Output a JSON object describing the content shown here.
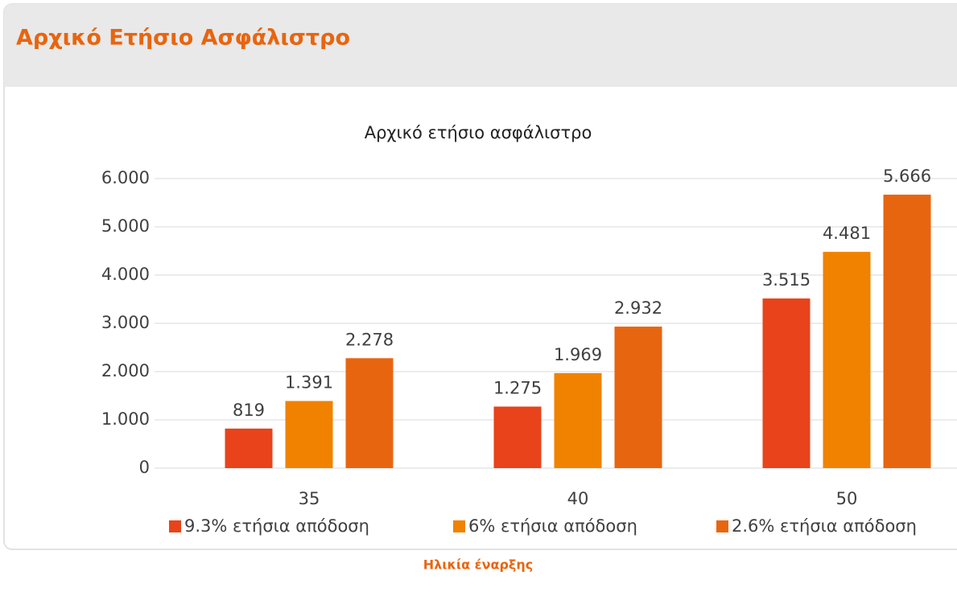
{
  "header": {
    "title": "Αρχικό Ετήσιο Ασφάλιστρο"
  },
  "chart_data": {
    "type": "bar",
    "title": "Αρχικό ετήσιο ασφάλιστρο",
    "x_label": "Ηλικία έναρξης",
    "categories": [
      "35",
      "40",
      "50"
    ],
    "series": [
      {
        "name": "9.3% ετήσια απόδοση",
        "color": "#e8431a",
        "values": [
          819,
          1275,
          3515
        ],
        "value_labels": [
          "819",
          "1.275",
          "3.515"
        ]
      },
      {
        "name": "6% ετήσια απόδοση",
        "color": "#f08200",
        "values": [
          1391,
          1969,
          4481
        ],
        "value_labels": [
          "1.391",
          "1.969",
          "4.481"
        ]
      },
      {
        "name": "2.6% ετήσια απόδοση",
        "color": "#e8650f",
        "values": [
          2278,
          2932,
          5666
        ],
        "value_labels": [
          "2.278",
          "2.932",
          "5.666"
        ]
      }
    ],
    "ylim": [
      0,
      6000
    ],
    "yticks": [
      0,
      {
        "value": 1000,
        "label": "1.000"
      },
      {
        "value": 2000,
        "label": "2.000"
      },
      {
        "value": 3000,
        "label": "3.000"
      },
      {
        "value": 4000,
        "label": "4.000"
      },
      {
        "value": 5000,
        "label": "5.000"
      },
      {
        "value": 6000,
        "label": "6.000"
      }
    ],
    "grid": true,
    "legend": "bottom"
  }
}
